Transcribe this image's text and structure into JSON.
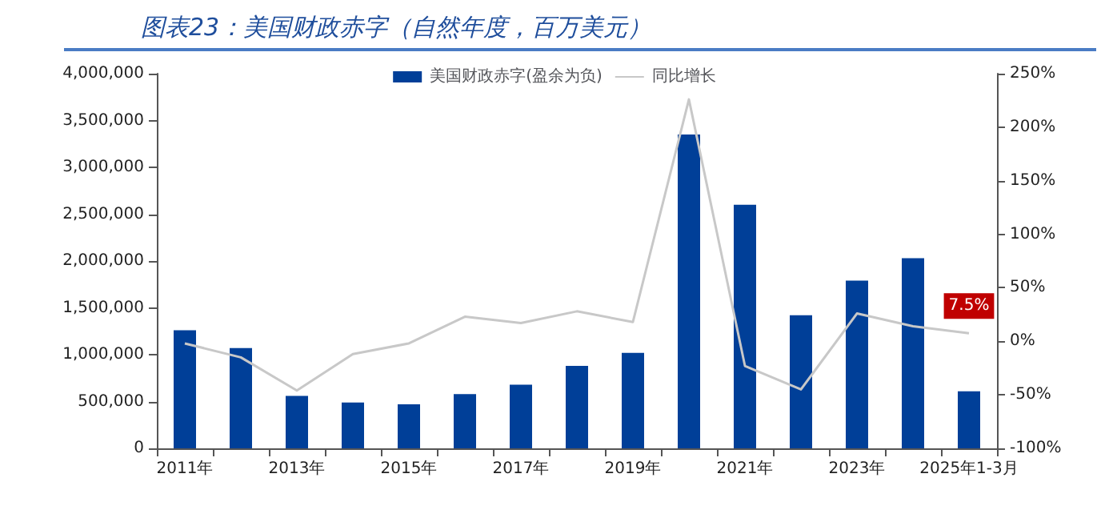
{
  "chart_data": {
    "type": "bar",
    "title": "图表23：美国财政赤字（自然年度，百万美元）",
    "categories": [
      "2011年",
      null,
      "2013年",
      null,
      "2015年",
      null,
      "2017年",
      null,
      "2019年",
      null,
      "2021年",
      null,
      "2023年",
      null,
      "2025年1-3月"
    ],
    "series": [
      {
        "name": "美国财政赤字(盈余为负)",
        "color": "#003f98",
        "values": [
          1260000,
          1070000,
          560000,
          490000,
          470000,
          580000,
          680000,
          880000,
          1020000,
          3350000,
          2600000,
          1420000,
          1790000,
          2030000,
          610000
        ]
      },
      {
        "name": "同比增长",
        "type": "line",
        "axis": "y2",
        "color": "#c8c8c8",
        "values": [
          -2,
          -15,
          -46,
          -12,
          -2,
          23,
          17,
          28,
          18,
          226,
          -23,
          -45,
          26,
          14,
          7.5
        ],
        "value_labels": [
          null,
          null,
          null,
          null,
          null,
          null,
          null,
          null,
          null,
          null,
          null,
          null,
          null,
          null,
          "7.5%"
        ]
      }
    ],
    "ylim": [
      0,
      4000000
    ],
    "yticks": [
      {
        "value": 0,
        "label": "0"
      },
      {
        "value": 500000,
        "label": "500,000"
      },
      {
        "value": 1000000,
        "label": "1,000,000"
      },
      {
        "value": 1500000,
        "label": "1,500,000"
      },
      {
        "value": 2000000,
        "label": "2,000,000"
      },
      {
        "value": 2500000,
        "label": "2,500,000"
      },
      {
        "value": 3000000,
        "label": "3,000,000"
      },
      {
        "value": 3500000,
        "label": "3,500,000"
      },
      {
        "value": 4000000,
        "label": "4,000,000"
      }
    ],
    "y2lim": [
      -100,
      250
    ],
    "y2ticks": [
      {
        "value": -100,
        "label": "-100%"
      },
      {
        "value": -50,
        "label": "-50%"
      },
      {
        "value": 0,
        "label": "0%"
      },
      {
        "value": 50,
        "label": "50%"
      },
      {
        "value": 100,
        "label": "100%"
      },
      {
        "value": 150,
        "label": "150%"
      },
      {
        "value": 200,
        "label": "200%"
      },
      {
        "value": 250,
        "label": "250%"
      }
    ],
    "legend": "top",
    "grid": false,
    "marker": "none"
  }
}
